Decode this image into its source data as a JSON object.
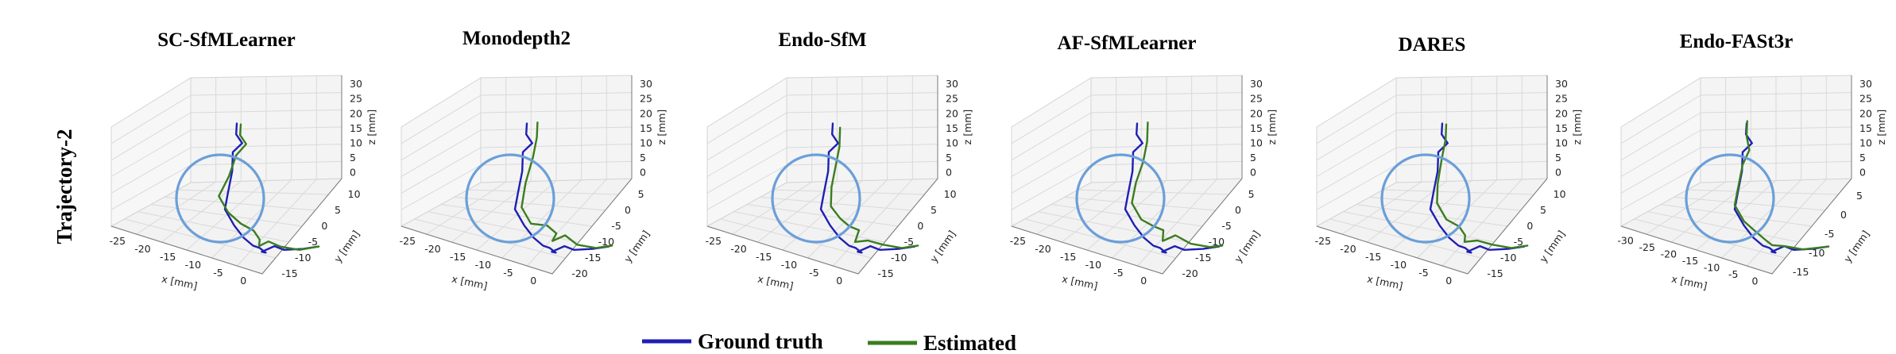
{
  "figure": {
    "row_label": "Trajectory-2",
    "colors": {
      "ground_truth": "#1f1fb4",
      "estimated": "#3a7d1f",
      "highlight_circle": "#6b9fd8"
    }
  },
  "legend": {
    "items": [
      {
        "label": "Ground truth",
        "color": "#1f1fb4"
      },
      {
        "label": "Estimated",
        "color": "#3a7d1f"
      }
    ]
  },
  "chart_data": [
    {
      "type": "line3d",
      "title": "SC-SfMLearner",
      "xlabel": "x [mm]",
      "ylabel": "y [mm]",
      "zlabel": "z [mm]",
      "x_ticks": [
        "-25",
        "-20",
        "-15",
        "-10",
        "-5",
        "0"
      ],
      "y_ticks": [
        "-15",
        "-10",
        "-5",
        "0",
        "5",
        "10"
      ],
      "z_ticks": [
        "0",
        "5",
        "10",
        "15",
        "20",
        "25",
        "30"
      ],
      "series": [
        {
          "name": "Ground truth",
          "points": [
            [
              -10,
              0,
              28
            ],
            [
              -11,
              -1,
              26
            ],
            [
              -10,
              -2,
              24
            ],
            [
              -12,
              -1,
              22
            ],
            [
              -13,
              -2,
              18
            ],
            [
              -15,
              -3,
              14
            ],
            [
              -16,
              -3,
              10
            ],
            [
              -14,
              -4,
              6
            ],
            [
              -12,
              -5,
              3
            ],
            [
              -10,
              -6,
              1
            ],
            [
              -8,
              -6,
              0
            ],
            [
              -7,
              -7,
              -1
            ],
            [
              -9,
              -8,
              0
            ],
            [
              -6,
              -9,
              1
            ],
            [
              -4,
              -10,
              0
            ],
            [
              0,
              -12,
              0
            ],
            [
              4,
              -13,
              0
            ]
          ]
        },
        {
          "name": "Estimated",
          "points": [
            [
              -8,
              1,
              27
            ],
            [
              -9,
              0,
              25
            ],
            [
              -8,
              -1,
              23
            ],
            [
              -11,
              -1,
              21
            ],
            [
              -14,
              -2,
              17
            ],
            [
              -17,
              -2,
              13
            ],
            [
              -15,
              -3,
              9
            ],
            [
              -12,
              -4,
              6
            ],
            [
              -9,
              -5,
              4
            ],
            [
              -8,
              -6,
              2
            ],
            [
              -9,
              -7,
              1
            ],
            [
              -7,
              -8,
              2
            ],
            [
              -5,
              -10,
              1
            ],
            [
              -1,
              -12,
              0
            ],
            [
              4,
              -13,
              0
            ]
          ]
        }
      ]
    },
    {
      "type": "line3d",
      "title": "Monodepth2",
      "xlabel": "x [mm]",
      "ylabel": "y [mm]",
      "zlabel": "z [mm]",
      "x_ticks": [
        "-25",
        "-20",
        "-15",
        "-10",
        "-5",
        "0"
      ],
      "y_ticks": [
        "-20",
        "-15",
        "-10",
        "-5",
        "0",
        "5"
      ],
      "z_ticks": [
        "0",
        "5",
        "10",
        "15",
        "20",
        "25",
        "30"
      ],
      "series": [
        {
          "name": "Ground truth",
          "points": [
            [
              -10,
              0,
              28
            ],
            [
              -11,
              -1,
              26
            ],
            [
              -10,
              -2,
              24
            ],
            [
              -12,
              -1,
              22
            ],
            [
              -13,
              -2,
              18
            ],
            [
              -15,
              -3,
              14
            ],
            [
              -16,
              -3,
              10
            ],
            [
              -14,
              -4,
              6
            ],
            [
              -12,
              -5,
              3
            ],
            [
              -10,
              -6,
              1
            ],
            [
              -8,
              -6,
              0
            ],
            [
              -7,
              -7,
              -1
            ],
            [
              -9,
              -8,
              0
            ],
            [
              -6,
              -9,
              1
            ],
            [
              -4,
              -10,
              0
            ],
            [
              0,
              -12,
              0
            ],
            [
              4,
              -13,
              0
            ]
          ]
        },
        {
          "name": "Estimated",
          "points": [
            [
              -6,
              1,
              27
            ],
            [
              -7,
              0,
              24
            ],
            [
              -9,
              -1,
              20
            ],
            [
              -12,
              -2,
              15
            ],
            [
              -14,
              -3,
              10
            ],
            [
              -12,
              -4,
              6
            ],
            [
              -8,
              -5,
              5
            ],
            [
              -6,
              -6,
              3
            ],
            [
              -8,
              -7,
              2
            ],
            [
              -5,
              -8,
              3
            ],
            [
              -3,
              -10,
              1
            ],
            [
              1,
              -12,
              0
            ],
            [
              5,
              -13,
              0
            ]
          ]
        }
      ]
    },
    {
      "type": "line3d",
      "title": "Endo-SfM",
      "xlabel": "x [mm]",
      "ylabel": "y [mm]",
      "zlabel": "z [mm]",
      "x_ticks": [
        "-25",
        "-20",
        "-15",
        "-10",
        "-5",
        "0"
      ],
      "y_ticks": [
        "-15",
        "-10",
        "-5",
        "0",
        "5",
        "10"
      ],
      "z_ticks": [
        "0",
        "5",
        "10",
        "15",
        "20",
        "25",
        "30"
      ],
      "series": [
        {
          "name": "Ground truth",
          "points": [
            [
              -10,
              0,
              28
            ],
            [
              -11,
              -1,
              26
            ],
            [
              -10,
              -2,
              24
            ],
            [
              -12,
              -1,
              22
            ],
            [
              -13,
              -2,
              18
            ],
            [
              -15,
              -3,
              14
            ],
            [
              -16,
              -3,
              10
            ],
            [
              -14,
              -4,
              6
            ],
            [
              -12,
              -5,
              3
            ],
            [
              -10,
              -6,
              1
            ],
            [
              -8,
              -6,
              0
            ],
            [
              -7,
              -7,
              -1
            ],
            [
              -9,
              -8,
              0
            ],
            [
              -6,
              -9,
              1
            ],
            [
              -4,
              -10,
              0
            ],
            [
              0,
              -12,
              0
            ],
            [
              4,
              -13,
              0
            ]
          ]
        },
        {
          "name": "Estimated",
          "points": [
            [
              -7,
              1,
              26
            ],
            [
              -8,
              0,
              22
            ],
            [
              -10,
              -1,
              18
            ],
            [
              -12,
              -2,
              14
            ],
            [
              -13,
              -3,
              10
            ],
            [
              -11,
              -4,
              7
            ],
            [
              -9,
              -5,
              5
            ],
            [
              -7,
              -6,
              4
            ],
            [
              -9,
              -7,
              2
            ],
            [
              -6,
              -8,
              2
            ],
            [
              -3,
              -10,
              1
            ],
            [
              1,
              -12,
              0
            ],
            [
              5,
              -13,
              0
            ]
          ]
        }
      ]
    },
    {
      "type": "line3d",
      "title": "AF-SfMLearner",
      "xlabel": "x [mm]",
      "ylabel": "y [mm]",
      "zlabel": "z [mm]",
      "x_ticks": [
        "-25",
        "-20",
        "-15",
        "-10",
        "-5",
        "0"
      ],
      "y_ticks": [
        "-20",
        "-15",
        "-10",
        "-5",
        "0",
        "5"
      ],
      "z_ticks": [
        "0",
        "5",
        "10",
        "15",
        "20",
        "25",
        "30"
      ],
      "series": [
        {
          "name": "Ground truth",
          "points": [
            [
              -10,
              0,
              28
            ],
            [
              -11,
              -1,
              26
            ],
            [
              -10,
              -2,
              24
            ],
            [
              -12,
              -1,
              22
            ],
            [
              -13,
              -2,
              18
            ],
            [
              -15,
              -3,
              14
            ],
            [
              -16,
              -3,
              10
            ],
            [
              -14,
              -4,
              6
            ],
            [
              -12,
              -5,
              3
            ],
            [
              -10,
              -6,
              1
            ],
            [
              -8,
              -6,
              0
            ],
            [
              -7,
              -7,
              -1
            ],
            [
              -9,
              -8,
              0
            ],
            [
              -6,
              -9,
              1
            ],
            [
              -4,
              -10,
              0
            ],
            [
              0,
              -12,
              0
            ],
            [
              4,
              -13,
              0
            ]
          ]
        },
        {
          "name": "Estimated",
          "points": [
            [
              -6,
              1,
              27
            ],
            [
              -7,
              0,
              23
            ],
            [
              -9,
              -1,
              19
            ],
            [
              -12,
              -2,
              15
            ],
            [
              -14,
              -3,
              11
            ],
            [
              -12,
              -4,
              7
            ],
            [
              -9,
              -5,
              5
            ],
            [
              -7,
              -6,
              4
            ],
            [
              -8,
              -7,
              2
            ],
            [
              -5,
              -8,
              3
            ],
            [
              -2,
              -10,
              1
            ],
            [
              2,
              -12,
              0
            ],
            [
              5,
              -13,
              0
            ]
          ]
        }
      ]
    },
    {
      "type": "line3d",
      "title": "DARES",
      "xlabel": "x [mm]",
      "ylabel": "y [mm]",
      "zlabel": "z [mm]",
      "x_ticks": [
        "-25",
        "-20",
        "-15",
        "-10",
        "-5",
        "0"
      ],
      "y_ticks": [
        "-15",
        "-10",
        "-5",
        "0",
        "5",
        "10"
      ],
      "z_ticks": [
        "0",
        "5",
        "10",
        "15",
        "20",
        "25",
        "30"
      ],
      "series": [
        {
          "name": "Ground truth",
          "points": [
            [
              -10,
              0,
              28
            ],
            [
              -11,
              -1,
              26
            ],
            [
              -10,
              -2,
              24
            ],
            [
              -12,
              -1,
              22
            ],
            [
              -13,
              -2,
              18
            ],
            [
              -15,
              -3,
              14
            ],
            [
              -16,
              -3,
              10
            ],
            [
              -14,
              -4,
              6
            ],
            [
              -12,
              -5,
              3
            ],
            [
              -10,
              -6,
              1
            ],
            [
              -8,
              -6,
              0
            ],
            [
              -7,
              -7,
              -1
            ],
            [
              -9,
              -8,
              0
            ],
            [
              -6,
              -9,
              1
            ],
            [
              -4,
              -10,
              0
            ],
            [
              0,
              -12,
              0
            ],
            [
              4,
              -13,
              0
            ]
          ]
        },
        {
          "name": "Estimated",
          "points": [
            [
              -8,
              1,
              27
            ],
            [
              -9,
              0,
              24
            ],
            [
              -11,
              -1,
              20
            ],
            [
              -13,
              -2,
              15
            ],
            [
              -14,
              -3,
              11
            ],
            [
              -12,
              -4,
              7
            ],
            [
              -9,
              -5,
              5
            ],
            [
              -8,
              -6,
              3
            ],
            [
              -9,
              -7,
              2
            ],
            [
              -6,
              -8,
              2
            ],
            [
              -3,
              -10,
              1
            ],
            [
              1,
              -12,
              0
            ],
            [
              5,
              -13,
              0
            ]
          ]
        }
      ]
    },
    {
      "type": "line3d",
      "title": "Endo-FASt3r",
      "xlabel": "x [mm]",
      "ylabel": "y [mm]",
      "zlabel": "z [mm]",
      "x_ticks": [
        "-30",
        "-25",
        "-20",
        "-15",
        "-10",
        "-5",
        "0"
      ],
      "y_ticks": [
        "-15",
        "-10",
        "-5",
        "0",
        "5"
      ],
      "z_ticks": [
        "0",
        "5",
        "10",
        "15",
        "20",
        "25",
        "30"
      ],
      "series": [
        {
          "name": "Ground truth",
          "points": [
            [
              -10,
              0,
              28
            ],
            [
              -11,
              -1,
              26
            ],
            [
              -10,
              -2,
              24
            ],
            [
              -12,
              -1,
              22
            ],
            [
              -13,
              -2,
              18
            ],
            [
              -15,
              -3,
              14
            ],
            [
              -16,
              -3,
              10
            ],
            [
              -14,
              -4,
              6
            ],
            [
              -12,
              -5,
              3
            ],
            [
              -10,
              -6,
              1
            ],
            [
              -8,
              -6,
              0
            ],
            [
              -7,
              -7,
              -1
            ],
            [
              -9,
              -8,
              0
            ],
            [
              -6,
              -9,
              1
            ],
            [
              -4,
              -10,
              0
            ],
            [
              0,
              -12,
              0
            ],
            [
              4,
              -13,
              0
            ]
          ]
        },
        {
          "name": "Estimated",
          "points": [
            [
              -9,
              1,
              28
            ],
            [
              -10,
              0,
              25
            ],
            [
              -10,
              -1,
              22
            ],
            [
              -12,
              -1,
              19
            ],
            [
              -14,
              -2,
              15
            ],
            [
              -16,
              -3,
              11
            ],
            [
              -14,
              -4,
              7
            ],
            [
              -11,
              -5,
              4
            ],
            [
              -9,
              -6,
              2
            ],
            [
              -8,
              -7,
              1
            ],
            [
              -6,
              -9,
              1
            ],
            [
              -2,
              -11,
              0
            ],
            [
              4,
              -13,
              0
            ]
          ]
        }
      ]
    }
  ]
}
